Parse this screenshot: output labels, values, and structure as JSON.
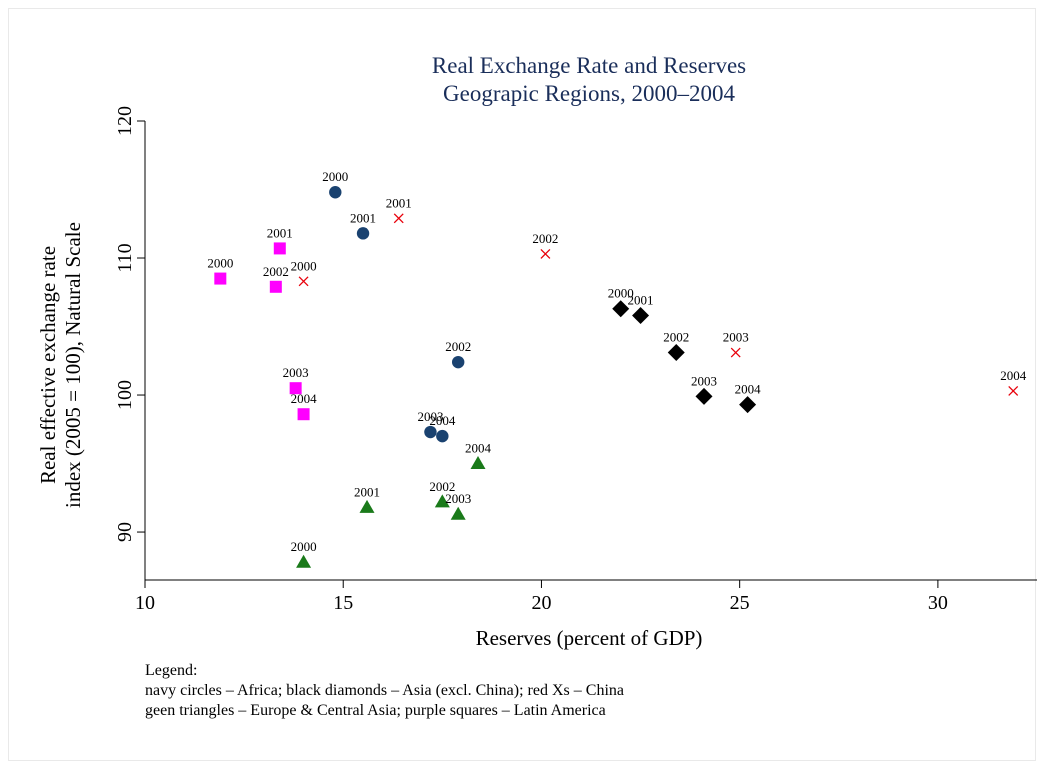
{
  "chart_data": {
    "type": "scatter",
    "title": "Real Exchange Rate and Reserves",
    "subtitle": "Geograpic Regions, 2000–2004",
    "xlabel": "Reserves (percent of GDP)",
    "ylabel_line1": "Real effective exchange rate",
    "ylabel_line2": "index (2005 = 100), Natural Scale",
    "xlim": [
      10,
      32.5
    ],
    "ylim": [
      86.5,
      120
    ],
    "xticks": [
      10,
      15,
      20,
      25,
      30
    ],
    "yticks": [
      90,
      100,
      110,
      120
    ],
    "grid": false,
    "legend_title": "Legend:",
    "legend_lines": [
      "navy circles – Africa;  black diamonds – Asia (excl. China); red Xs – China",
      "geen triangles – Europe & Central Asia; purple squares – Latin America"
    ],
    "series": [
      {
        "marker": "circle",
        "color": "#1a4270",
        "points": [
          {
            "x": 14.8,
            "y": 114.8,
            "label": "2000"
          },
          {
            "x": 15.5,
            "y": 111.8,
            "label": "2001"
          },
          {
            "x": 17.9,
            "y": 102.4,
            "label": "2002"
          },
          {
            "x": 17.2,
            "y": 97.3,
            "label": "2003"
          },
          {
            "x": 17.5,
            "y": 97.0,
            "label": "2004"
          }
        ]
      },
      {
        "marker": "diamond",
        "color": "#000000",
        "points": [
          {
            "x": 22.0,
            "y": 106.3,
            "label": "2000"
          },
          {
            "x": 22.5,
            "y": 105.8,
            "label": "2001"
          },
          {
            "x": 23.4,
            "y": 103.1,
            "label": "2002"
          },
          {
            "x": 24.1,
            "y": 99.9,
            "label": "2003"
          },
          {
            "x": 25.2,
            "y": 99.3,
            "label": "2004"
          }
        ]
      },
      {
        "marker": "x",
        "color": "#e8000b",
        "points": [
          {
            "x": 14.0,
            "y": 108.3,
            "label": "2000"
          },
          {
            "x": 16.4,
            "y": 112.9,
            "label": "2001"
          },
          {
            "x": 20.1,
            "y": 110.3,
            "label": "2002"
          },
          {
            "x": 24.9,
            "y": 103.1,
            "label": "2003"
          },
          {
            "x": 31.9,
            "y": 100.3,
            "label": "2004"
          }
        ]
      },
      {
        "marker": "triangle",
        "color": "#1a7a1a",
        "points": [
          {
            "x": 14.0,
            "y": 87.8,
            "label": "2000"
          },
          {
            "x": 15.6,
            "y": 91.8,
            "label": "2001"
          },
          {
            "x": 17.5,
            "y": 92.2,
            "label": "2002"
          },
          {
            "x": 17.9,
            "y": 91.3,
            "label": "2003"
          },
          {
            "x": 18.4,
            "y": 95.0,
            "label": "2004"
          }
        ]
      },
      {
        "marker": "square",
        "color": "#ff00ff",
        "points": [
          {
            "x": 11.9,
            "y": 108.5,
            "label": "2000"
          },
          {
            "x": 13.4,
            "y": 110.7,
            "label": "2001"
          },
          {
            "x": 13.3,
            "y": 107.9,
            "label": "2002"
          },
          {
            "x": 13.8,
            "y": 100.5,
            "label": "2003"
          },
          {
            "x": 14.0,
            "y": 98.6,
            "label": "2004"
          }
        ]
      }
    ]
  }
}
